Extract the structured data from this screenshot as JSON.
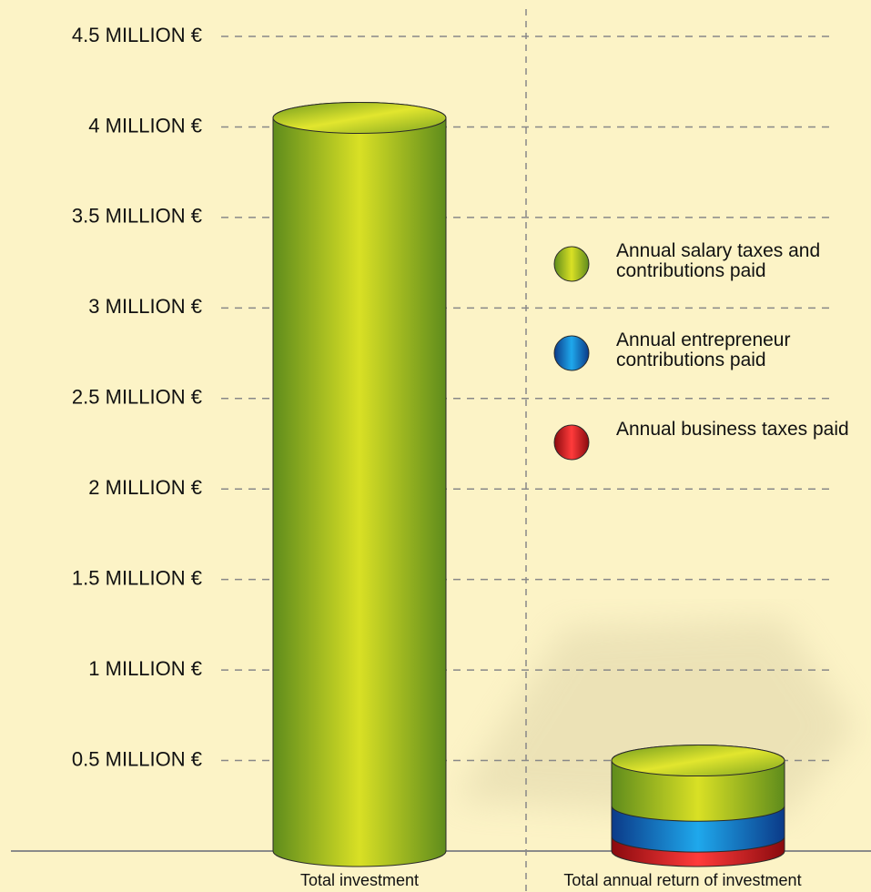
{
  "chart_data": {
    "type": "bar",
    "stacked": true,
    "categories": [
      "Total investment",
      "Total annual return of investment"
    ],
    "series": [
      {
        "name": "Annual salary taxes and contributions paid",
        "color": "#a7c52b",
        "values": [
          4.05,
          0.25
        ]
      },
      {
        "name": "Annual entrepreneur contributions paid",
        "color": "#1476c9",
        "values": [
          null,
          0.17
        ]
      },
      {
        "name": "Annual business taxes paid",
        "color": "#d8161c",
        "values": [
          null,
          0.08
        ]
      }
    ],
    "ylim": [
      0,
      4.5
    ],
    "yticks": [
      {
        "value": 0.5,
        "label": "0.5 MILLION €"
      },
      {
        "value": 1,
        "label": "1 MILLION €"
      },
      {
        "value": 1.5,
        "label": "1.5 MILLION €"
      },
      {
        "value": 2,
        "label": "2 MILLION €"
      },
      {
        "value": 2.5,
        "label": "2.5 MILLION €"
      },
      {
        "value": 3,
        "label": "3 MILLION €"
      },
      {
        "value": 3.5,
        "label": "3.5 MILLION €"
      },
      {
        "value": 4,
        "label": "4 MILLION €"
      },
      {
        "value": 4.5,
        "label": "4.5 MILLION €"
      }
    ],
    "grid": true,
    "legend": "right"
  }
}
